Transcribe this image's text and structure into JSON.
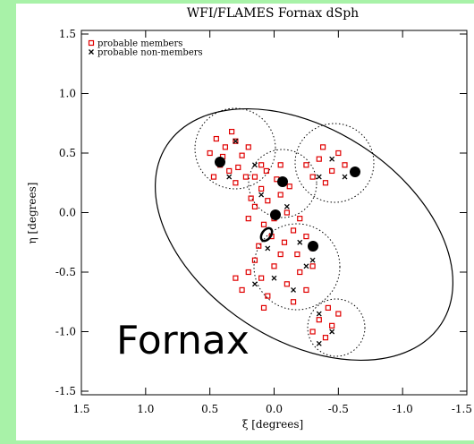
{
  "chart_data": {
    "type": "scatter",
    "title": "WFI/FLAMES Fornax dSph",
    "x_label": "ξ [degrees]",
    "y_label": "η [degrees]",
    "annotation": "Fornax",
    "xlim": [
      1.5,
      -1.5
    ],
    "ylim": [
      -1.5,
      1.5
    ],
    "xticks": [
      1.5,
      {
        "value": 1,
        "label": "1.0"
      },
      0.5,
      {
        "value": 0,
        "label": "0.0"
      },
      -0.5,
      {
        "value": -1,
        "label": "-1.0"
      },
      -1.5
    ],
    "yticks": [
      -1.5,
      {
        "value": -1,
        "label": "-1.0"
      },
      -0.5,
      {
        "value": 0,
        "label": "0.0"
      },
      0.5,
      {
        "value": 1,
        "label": "1.0"
      },
      1.5
    ],
    "legend": "top-left",
    "series": [
      {
        "name": "probable members",
        "color": "#e00000",
        "marker": "square",
        "x": [
          0.45,
          0.38,
          0.3,
          0.25,
          0.42,
          0.35,
          0.5,
          0.28,
          0.2,
          0.33,
          0.47,
          0.22,
          0.4,
          0.3,
          0.1,
          0.05,
          -0.05,
          0.15,
          0.0,
          -0.1,
          0.08,
          -0.15,
          0.02,
          -0.08,
          0.12,
          -0.2,
          0.18,
          -0.02,
          0.06,
          -0.12,
          0.2,
          -0.25,
          -0.3,
          -0.18,
          0.1,
          -0.05,
          0.15,
          -0.35,
          -0.45,
          -0.3,
          -0.5,
          -0.4,
          -0.55,
          -0.25,
          -0.38,
          0.2,
          0.1,
          0.0,
          -0.1,
          0.25,
          0.05,
          -0.2,
          -0.15,
          0.15,
          -0.05,
          0.3,
          -0.25,
          0.08,
          -0.3,
          -0.35,
          -0.45,
          -0.4,
          -0.3,
          -0.5,
          -0.42
        ],
        "values": [
          0.62,
          0.55,
          0.6,
          0.48,
          0.4,
          0.35,
          0.5,
          0.38,
          0.55,
          0.68,
          0.3,
          0.3,
          0.47,
          0.25,
          0.2,
          0.1,
          0.15,
          0.05,
          -0.05,
          0.0,
          -0.1,
          -0.15,
          -0.2,
          -0.25,
          -0.28,
          -0.05,
          0.12,
          0.28,
          0.35,
          0.22,
          -0.05,
          -0.2,
          -0.3,
          -0.35,
          0.4,
          0.4,
          0.3,
          0.45,
          0.35,
          0.3,
          0.5,
          0.25,
          0.4,
          0.4,
          0.55,
          -0.5,
          -0.55,
          -0.45,
          -0.6,
          -0.65,
          -0.7,
          -0.5,
          -0.75,
          -0.4,
          -0.35,
          -0.55,
          -0.65,
          -0.8,
          -0.45,
          -0.9,
          -0.95,
          -1.05,
          -1.0,
          -0.85,
          -0.8
        ]
      },
      {
        "name": "probable non-members",
        "color": "#000000",
        "marker": "x",
        "x": [
          0.3,
          0.15,
          0.35,
          -0.45,
          -0.35,
          -0.55,
          -0.1,
          0.05,
          -0.2,
          -0.3,
          0.0,
          0.15,
          -0.15,
          -0.35,
          -0.45,
          -0.35,
          -0.25,
          0.1
        ],
        "values": [
          0.6,
          0.4,
          0.3,
          0.45,
          0.3,
          0.3,
          0.05,
          -0.3,
          -0.25,
          -0.4,
          -0.55,
          -0.6,
          -0.65,
          -0.85,
          -1.0,
          -1.1,
          -0.45,
          0.15
        ]
      }
    ]
  }
}
